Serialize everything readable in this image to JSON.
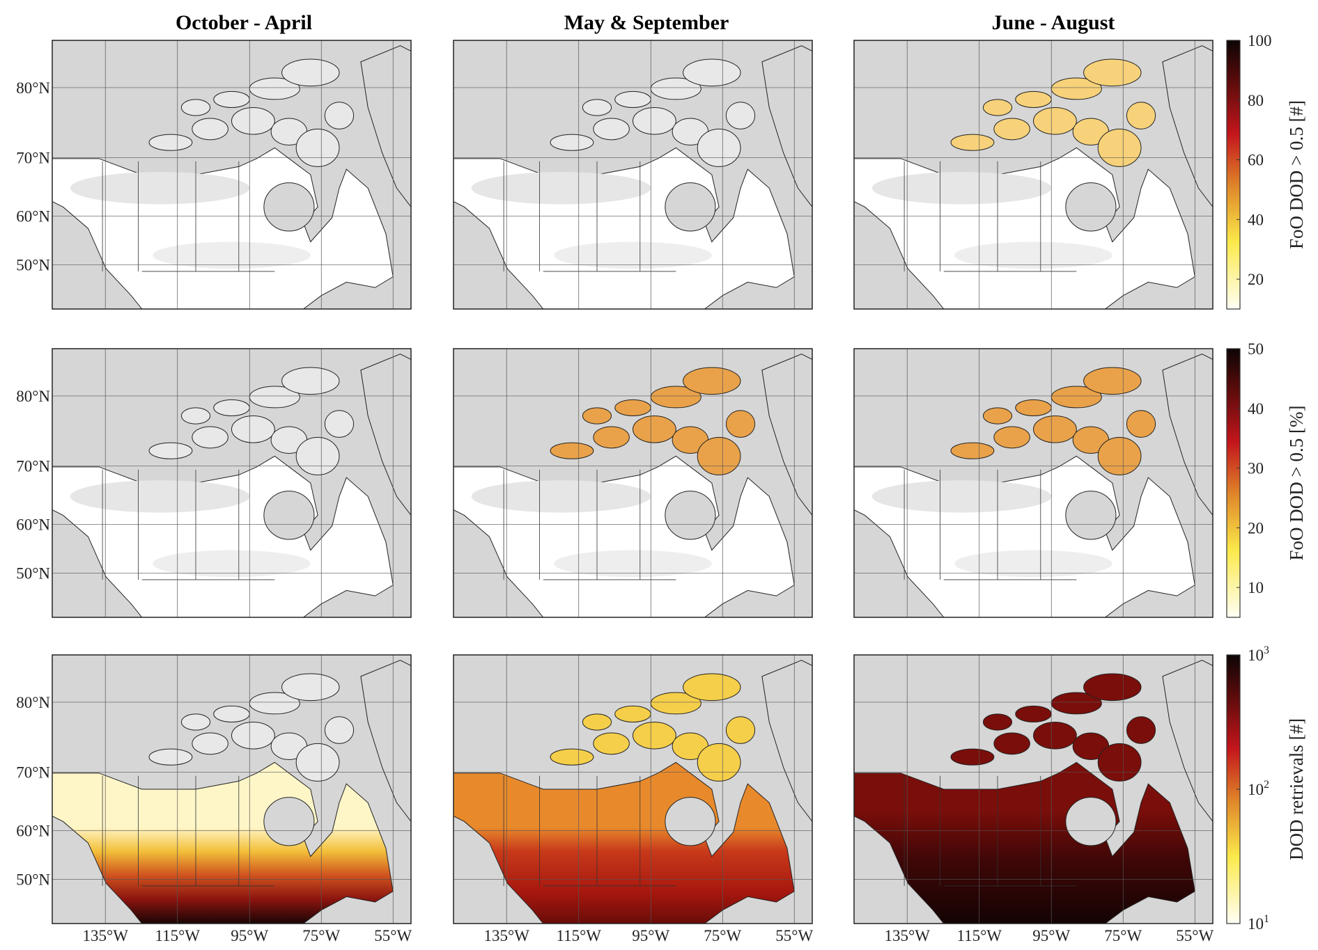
{
  "column_titles": [
    "October - April",
    "May & September",
    "June - August"
  ],
  "lat_ticks": [
    "80°N",
    "70°N",
    "60°N",
    "50°N"
  ],
  "lon_ticks": [
    "135°W",
    "115°W",
    "95°W",
    "75°W",
    "55°W"
  ],
  "colorbars": [
    {
      "label": "FoO DOD > 0.5 [#]",
      "scale": "linear",
      "range": [
        10,
        100
      ],
      "ticks": [
        "20",
        "40",
        "60",
        "80",
        "100"
      ],
      "tick_values": [
        20,
        40,
        60,
        80,
        100
      ]
    },
    {
      "label": "FoO DOD > 0.5 [%]",
      "scale": "linear",
      "range": [
        5,
        50
      ],
      "ticks": [
        "10",
        "20",
        "30",
        "40",
        "50"
      ],
      "tick_values": [
        10,
        20,
        30,
        40,
        50
      ]
    },
    {
      "label": "DOD retrievals [#]",
      "scale": "log",
      "range": [
        10,
        1000
      ],
      "ticks": [
        "10",
        "10",
        "10"
      ],
      "tick_exponents": [
        "1",
        "2",
        "3"
      ],
      "tick_values": [
        10,
        100,
        1000
      ]
    }
  ],
  "colormap": [
    "#fffef5",
    "#fbe94a",
    "#e08a2a",
    "#c4161c",
    "#5a0b0b",
    "#0d0505"
  ],
  "colors": {
    "ocean": "#d6d6d6",
    "no_data_land": "#e6e6e6",
    "land_low": "#ffffff"
  }
}
